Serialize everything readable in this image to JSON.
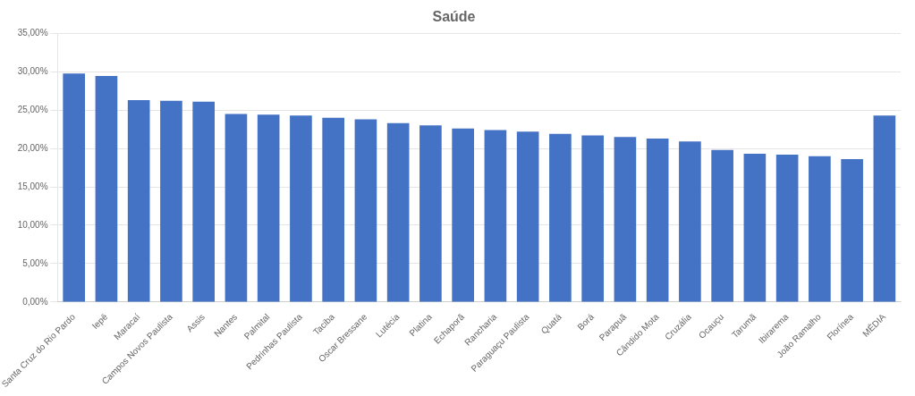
{
  "chart_data": {
    "type": "bar",
    "title": "Saúde",
    "categories": [
      "Santa Cruz do Rio Pardo",
      "Iepê",
      "Maracaí",
      "Campos Novos Paulista",
      "Assis",
      "Nantes",
      "Palmital",
      "Pedrinhas Paulista",
      "Taciba",
      "Oscar Bressane",
      "Lutécia",
      "Platina",
      "Echaporã",
      "Rancharia",
      "Paraguaçu Paulista",
      "Quatá",
      "Borá",
      "Parapuã",
      "Cândido Mota",
      "Cruzália",
      "Ocauçu",
      "Tarumã",
      "Ibirarema",
      "João Ramalho",
      "Florínea",
      "MÉDIA"
    ],
    "values": [
      0.2975,
      0.2945,
      0.263,
      0.262,
      0.261,
      0.245,
      0.244,
      0.243,
      0.24,
      0.238,
      0.233,
      0.23,
      0.226,
      0.224,
      0.222,
      0.219,
      0.217,
      0.215,
      0.213,
      0.209,
      0.198,
      0.193,
      0.192,
      0.19,
      0.186,
      0.243
    ],
    "color": "#4472C4",
    "ylim": [
      0,
      0.35
    ],
    "yticks": [
      {
        "value": 0.0,
        "label": "0,00%"
      },
      {
        "value": 0.05,
        "label": "5,00%"
      },
      {
        "value": 0.1,
        "label": "10,00%"
      },
      {
        "value": 0.15,
        "label": "15,00%"
      },
      {
        "value": 0.2,
        "label": "20,00%"
      },
      {
        "value": 0.25,
        "label": "25,00%"
      },
      {
        "value": 0.3,
        "label": "30,00%"
      },
      {
        "value": 0.35,
        "label": "35,00%"
      }
    ],
    "grid": true
  }
}
